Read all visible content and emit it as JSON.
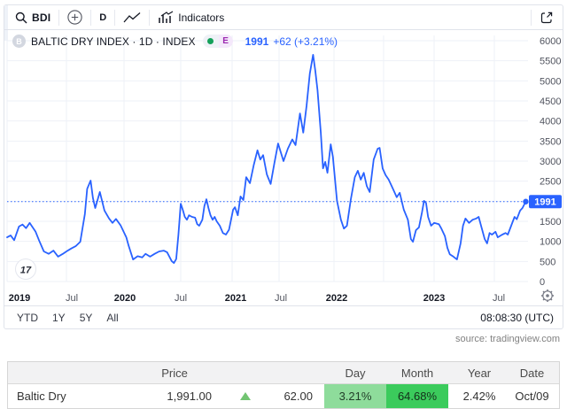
{
  "toolbar": {
    "symbol": "BDI",
    "interval": "D",
    "indicators_label": "Indicators"
  },
  "legend": {
    "symbol_badge": "B",
    "title": "BALTIC DRY INDEX · 1D · INDEX",
    "market_status": "E",
    "price": "1991",
    "change": "+62 (+3.21%)"
  },
  "chart_data": {
    "type": "line",
    "title": "Baltic Dry Index · 1D",
    "legend": [
      "BDI"
    ],
    "x_axis_ticks": [
      "2019",
      "Jul",
      "2020",
      "Jul",
      "2021",
      "Jul",
      "2022",
      "2023",
      "Jul"
    ],
    "y_axis_tick_labels": [
      "6000",
      "5500",
      "5000",
      "4500",
      "4000",
      "3500",
      "3000",
      "2500",
      "1500",
      "1000",
      "500",
      "0"
    ],
    "y_gridline_values": [
      0,
      500,
      1000,
      1500,
      2000,
      2500,
      3000,
      3500,
      4000,
      4500,
      5000,
      5500,
      6000
    ],
    "ylim": [
      0,
      6300
    ],
    "xlim_years": [
      2019.0,
      2023.8
    ],
    "last_value": 1991,
    "last_value_badge": "1991",
    "price_line_value": 1991,
    "series": [
      {
        "name": "BDI",
        "points": [
          [
            2019.0,
            1100
          ],
          [
            2019.03,
            1150
          ],
          [
            2019.06,
            1030
          ],
          [
            2019.1,
            1370
          ],
          [
            2019.13,
            1420
          ],
          [
            2019.16,
            1330
          ],
          [
            2019.19,
            1460
          ],
          [
            2019.24,
            1240
          ],
          [
            2019.27,
            1020
          ],
          [
            2019.31,
            750
          ],
          [
            2019.35,
            690
          ],
          [
            2019.39,
            770
          ],
          [
            2019.43,
            620
          ],
          [
            2019.47,
            690
          ],
          [
            2019.5,
            750
          ],
          [
            2019.54,
            820
          ],
          [
            2019.58,
            880
          ],
          [
            2019.62,
            990
          ],
          [
            2019.66,
            1680
          ],
          [
            2019.68,
            2310
          ],
          [
            2019.71,
            2515
          ],
          [
            2019.73,
            2080
          ],
          [
            2019.75,
            1830
          ],
          [
            2019.79,
            2230
          ],
          [
            2019.83,
            1770
          ],
          [
            2019.87,
            1570
          ],
          [
            2019.9,
            1460
          ],
          [
            2019.93,
            1560
          ],
          [
            2019.97,
            1400
          ],
          [
            2020.02,
            1100
          ],
          [
            2020.04,
            900
          ],
          [
            2020.08,
            550
          ],
          [
            2020.12,
            630
          ],
          [
            2020.16,
            600
          ],
          [
            2020.19,
            690
          ],
          [
            2020.23,
            620
          ],
          [
            2020.27,
            690
          ],
          [
            2020.31,
            750
          ],
          [
            2020.35,
            770
          ],
          [
            2020.38,
            730
          ],
          [
            2020.4,
            620
          ],
          [
            2020.42,
            510
          ],
          [
            2020.44,
            460
          ],
          [
            2020.46,
            560
          ],
          [
            2020.48,
            1170
          ],
          [
            2020.5,
            1940
          ],
          [
            2020.52,
            1790
          ],
          [
            2020.54,
            1610
          ],
          [
            2020.56,
            1540
          ],
          [
            2020.58,
            1650
          ],
          [
            2020.61,
            1610
          ],
          [
            2020.64,
            1590
          ],
          [
            2020.66,
            1430
          ],
          [
            2020.68,
            1390
          ],
          [
            2020.71,
            1540
          ],
          [
            2020.73,
            1880
          ],
          [
            2020.75,
            2050
          ],
          [
            2020.77,
            1830
          ],
          [
            2020.79,
            1650
          ],
          [
            2020.81,
            1540
          ],
          [
            2020.83,
            1610
          ],
          [
            2020.85,
            1500
          ],
          [
            2020.88,
            1390
          ],
          [
            2020.91,
            1210
          ],
          [
            2020.94,
            1170
          ],
          [
            2020.97,
            1290
          ],
          [
            2021.01,
            1790
          ],
          [
            2021.03,
            1850
          ],
          [
            2021.06,
            1650
          ],
          [
            2021.09,
            2120
          ],
          [
            2021.12,
            2030
          ],
          [
            2021.15,
            2600
          ],
          [
            2021.19,
            2450
          ],
          [
            2021.23,
            2900
          ],
          [
            2021.27,
            3270
          ],
          [
            2021.3,
            3040
          ],
          [
            2021.33,
            3150
          ],
          [
            2021.37,
            2670
          ],
          [
            2021.41,
            2430
          ],
          [
            2021.45,
            2950
          ],
          [
            2021.49,
            3440
          ],
          [
            2021.54,
            3000
          ],
          [
            2021.58,
            3310
          ],
          [
            2021.62,
            3540
          ],
          [
            2021.65,
            3400
          ],
          [
            2021.69,
            4190
          ],
          [
            2021.72,
            3710
          ],
          [
            2021.75,
            4370
          ],
          [
            2021.78,
            5180
          ],
          [
            2021.81,
            5650
          ],
          [
            2021.83,
            5250
          ],
          [
            2021.85,
            4770
          ],
          [
            2021.88,
            3710
          ],
          [
            2021.9,
            2820
          ],
          [
            2021.92,
            2980
          ],
          [
            2021.94,
            2710
          ],
          [
            2021.97,
            3420
          ],
          [
            2021.99,
            3100
          ],
          [
            2022.03,
            2010
          ],
          [
            2022.07,
            1540
          ],
          [
            2022.1,
            1320
          ],
          [
            2022.13,
            1390
          ],
          [
            2022.17,
            2050
          ],
          [
            2022.21,
            2600
          ],
          [
            2022.24,
            2760
          ],
          [
            2022.27,
            2540
          ],
          [
            2022.3,
            2710
          ],
          [
            2022.33,
            2380
          ],
          [
            2022.36,
            2230
          ],
          [
            2022.4,
            3040
          ],
          [
            2022.44,
            3310
          ],
          [
            2022.46,
            3330
          ],
          [
            2022.49,
            2820
          ],
          [
            2022.52,
            2650
          ],
          [
            2022.55,
            2540
          ],
          [
            2022.59,
            2320
          ],
          [
            2022.63,
            2100
          ],
          [
            2022.66,
            2210
          ],
          [
            2022.7,
            1790
          ],
          [
            2022.74,
            1540
          ],
          [
            2022.77,
            1060
          ],
          [
            2022.79,
            990
          ],
          [
            2022.82,
            1280
          ],
          [
            2022.85,
            1350
          ],
          [
            2022.88,
            1720
          ],
          [
            2022.9,
            2010
          ],
          [
            2022.92,
            1960
          ],
          [
            2022.94,
            1610
          ],
          [
            2022.97,
            1390
          ],
          [
            2023.0,
            1460
          ],
          [
            2023.04,
            1430
          ],
          [
            2023.06,
            1320
          ],
          [
            2023.09,
            1130
          ],
          [
            2023.11,
            840
          ],
          [
            2023.13,
            680
          ],
          [
            2023.16,
            620
          ],
          [
            2023.19,
            550
          ],
          [
            2023.22,
            950
          ],
          [
            2023.24,
            1390
          ],
          [
            2023.26,
            1570
          ],
          [
            2023.29,
            1460
          ],
          [
            2023.32,
            1540
          ],
          [
            2023.35,
            1570
          ],
          [
            2023.37,
            1610
          ],
          [
            2023.39,
            1390
          ],
          [
            2023.42,
            1060
          ],
          [
            2023.44,
            950
          ],
          [
            2023.46,
            1210
          ],
          [
            2023.48,
            1170
          ],
          [
            2023.51,
            1240
          ],
          [
            2023.53,
            1100
          ],
          [
            2023.57,
            1170
          ],
          [
            2023.6,
            1210
          ],
          [
            2023.62,
            1170
          ],
          [
            2023.65,
            1390
          ],
          [
            2023.68,
            1610
          ],
          [
            2023.7,
            1550
          ],
          [
            2023.73,
            1770
          ],
          [
            2023.75,
            1830
          ],
          [
            2023.77,
            1940
          ],
          [
            2023.78,
            1991
          ]
        ]
      }
    ]
  },
  "watermark": "17",
  "range_bar": {
    "ranges": [
      "YTD",
      "1Y",
      "5Y",
      "All"
    ],
    "clock": "08:08:30 (UTC)"
  },
  "source": "source: tradingview.com",
  "table": {
    "headers": [
      "Price",
      "Day",
      "Month",
      "Year",
      "Date"
    ],
    "row": {
      "name": "Baltic Dry",
      "price": "1,991.00",
      "direction": "up",
      "change": "62.00",
      "day": "3.21%",
      "month": "64.68%",
      "year": "2.42%",
      "date": "Oct/09"
    }
  },
  "colors": {
    "accent_blue": "#2962ff",
    "line": "#2962ff",
    "grid": "#eef1f7",
    "axis_text": "#50535e",
    "year_text": "#131722",
    "up_green": "#72c472",
    "day_cell_bg": "#8edc9b",
    "month_cell_bg": "#3bcb5c",
    "status_dot": "#14a05a",
    "e_badge_text": "#9c27b0",
    "badge_text": "#ffffff"
  }
}
